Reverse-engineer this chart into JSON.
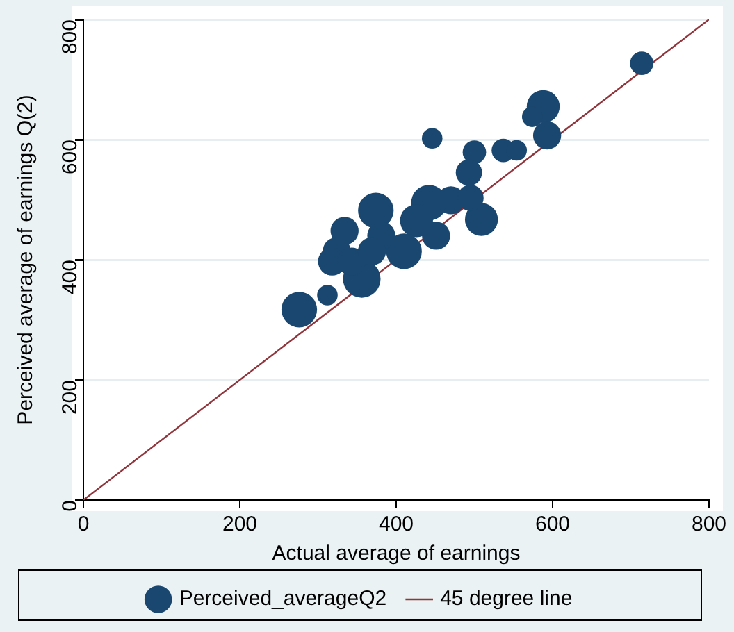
{
  "chart_data": {
    "type": "bubble",
    "xlabel": "Actual average of earnings",
    "ylabel": "Perceived average of earnings Q(2)",
    "xlim": [
      0,
      800
    ],
    "xticks": [
      0,
      200,
      400,
      600,
      800
    ],
    "ylim": [
      0,
      800
    ],
    "yticks": [
      0,
      200,
      400,
      600,
      800
    ],
    "grid": "y",
    "legend": "bottom",
    "series": [
      {
        "name": "Perceived_averageQ2",
        "color": "#1a476f",
        "x": [
          714,
          588,
          574,
          593,
          446,
          500,
          537,
          554,
          493,
          509,
          451,
          442,
          470,
          495,
          426,
          410,
          374,
          334,
          324,
          318,
          356,
          343,
          312,
          276,
          381,
          369
        ],
        "values": [
          727,
          655,
          638,
          607,
          602,
          579,
          582,
          582,
          545,
          467,
          440,
          495,
          499,
          503,
          465,
          414,
          482,
          448,
          414,
          397,
          368,
          397,
          341,
          317,
          440,
          414
        ],
        "sizes": [
          0.39,
          0.77,
          0.3,
          0.56,
          0.3,
          0.39,
          0.39,
          0.3,
          0.49,
          0.77,
          0.56,
          0.9,
          0.56,
          0.49,
          0.77,
          0.9,
          0.9,
          0.56,
          0.56,
          0.56,
          1,
          0.56,
          0.3,
          0.9,
          0.56,
          0.56
        ]
      },
      {
        "name": "45 degree line",
        "type": "line",
        "color": "#90353b",
        "x": [
          0,
          800
        ],
        "values": [
          0,
          800
        ]
      }
    ]
  }
}
